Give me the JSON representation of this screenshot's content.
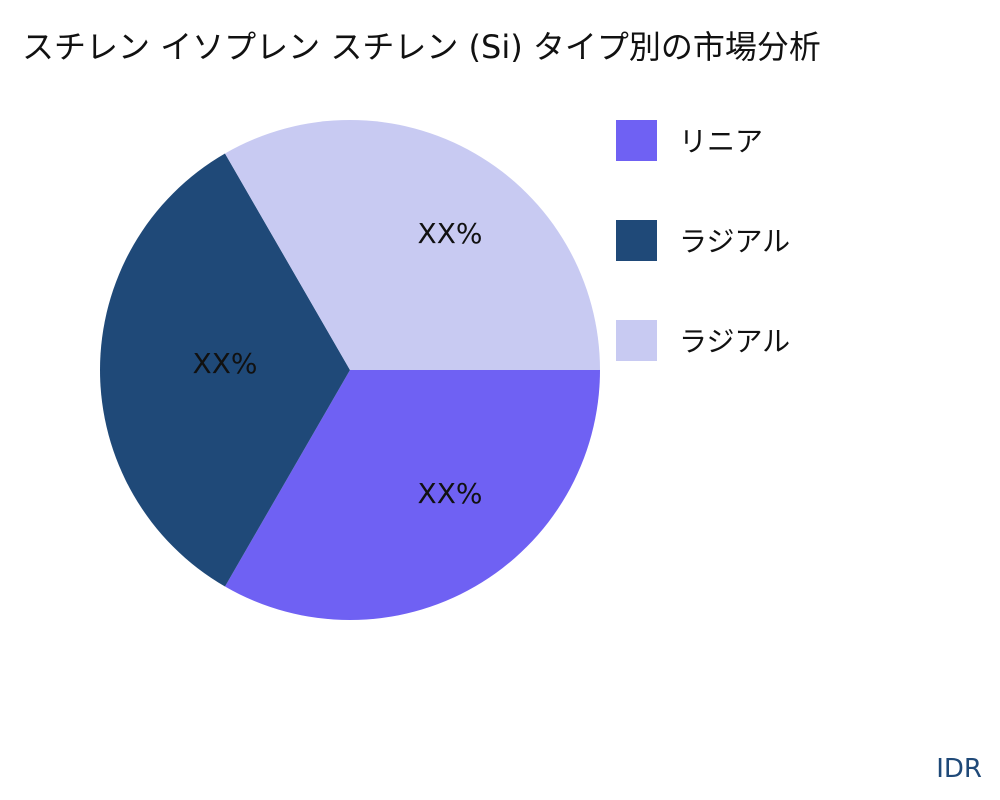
{
  "chart_data": {
    "type": "pie",
    "title": "スチレン イソプレン スチレン (Si) タイプ別の市場分析",
    "slices": [
      {
        "label": "リニア",
        "value": 33.33,
        "display": "XX%",
        "color": "#6f61f3"
      },
      {
        "label": "ラジアル",
        "value": 33.33,
        "display": "XX%",
        "color": "#1f4978"
      },
      {
        "label": "ラジアル",
        "value": 33.33,
        "display": "XX%",
        "color": "#c8caf2"
      }
    ],
    "legend_placement": "right"
  },
  "source": "IDR"
}
